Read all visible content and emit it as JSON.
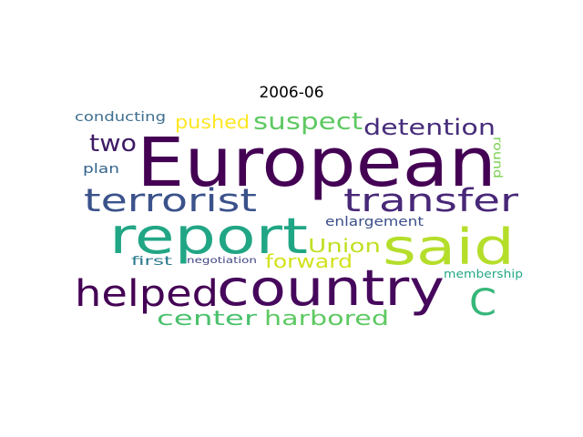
{
  "title": "2006-06",
  "words": [
    {
      "text": "European",
      "color": "#440154"
    },
    {
      "text": "report",
      "color": "#21a685"
    },
    {
      "text": "said",
      "color": "#b5de2b"
    },
    {
      "text": "country",
      "color": "#46085c"
    },
    {
      "text": "terrorist",
      "color": "#3b528b"
    },
    {
      "text": "transfer",
      "color": "#482878"
    },
    {
      "text": "helped",
      "color": "#440154"
    },
    {
      "text": "C",
      "color": "#35b779"
    },
    {
      "text": "suspect",
      "color": "#5ec962"
    },
    {
      "text": "detention",
      "color": "#472d7b"
    },
    {
      "text": "two",
      "color": "#3e1a66"
    },
    {
      "text": "pushed",
      "color": "#fde725"
    },
    {
      "text": "Union",
      "color": "#c2df23"
    },
    {
      "text": "forward",
      "color": "#d2e21b"
    },
    {
      "text": "center",
      "color": "#4ac16d"
    },
    {
      "text": "harbored",
      "color": "#5ec962"
    },
    {
      "text": "conducting",
      "color": "#3e6e8e"
    },
    {
      "text": "plan",
      "color": "#33638d"
    },
    {
      "text": "enlargement",
      "color": "#3b4f8a"
    },
    {
      "text": "round",
      "color": "#7ad151"
    },
    {
      "text": "first",
      "color": "#2a788e"
    },
    {
      "text": "negotiation",
      "color": "#414487"
    },
    {
      "text": "membership",
      "color": "#22a884"
    }
  ]
}
